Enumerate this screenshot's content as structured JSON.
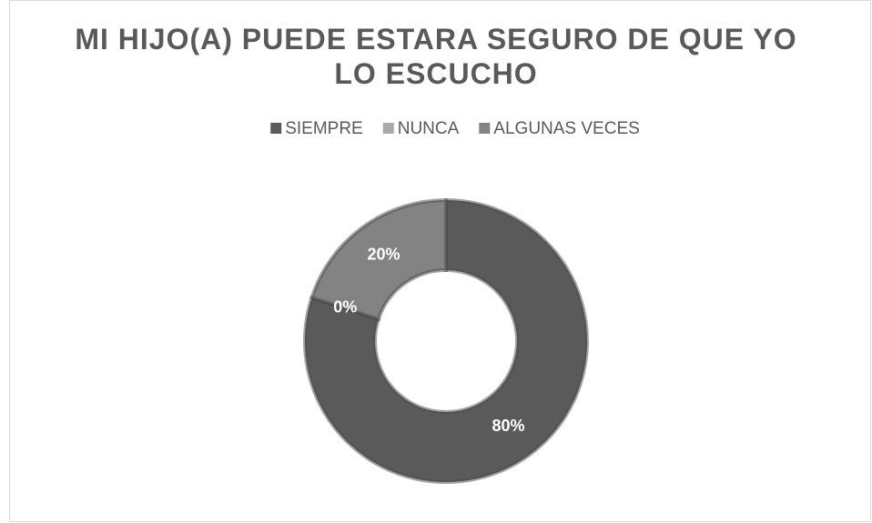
{
  "chart_data": {
    "type": "doughnut",
    "title": "MI HIJO(A) PUEDE ESTARA SEGURO DE QUE YO LO ESCUCHO",
    "categories": [
      "SIEMPRE",
      "NUNCA",
      "ALGUNAS VECES"
    ],
    "values": [
      80,
      0,
      20
    ],
    "value_labels": [
      "80%",
      "0%",
      "20%"
    ],
    "colors": [
      "#5a5a5a",
      "#a9a9a9",
      "#838383"
    ],
    "legend": "top"
  }
}
